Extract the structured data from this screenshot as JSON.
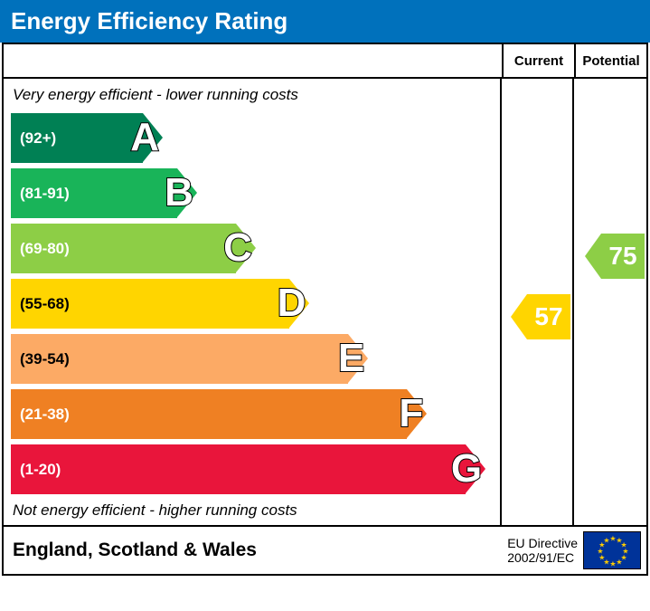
{
  "title": "Energy Efficiency Rating",
  "title_bg": "#0071bc",
  "header": {
    "current": "Current",
    "potential": "Potential"
  },
  "caption_top": "Very energy efficient - lower running costs",
  "caption_bottom": "Not energy efficient - higher running costs",
  "bands": [
    {
      "letter": "A",
      "range": "(92+)",
      "color": "#008054",
      "width_pct": 27,
      "label_color": "#ffffff"
    },
    {
      "letter": "B",
      "range": "(81-91)",
      "color": "#19b459",
      "width_pct": 34,
      "label_color": "#ffffff"
    },
    {
      "letter": "C",
      "range": "(69-80)",
      "color": "#8dce46",
      "width_pct": 46,
      "label_color": "#ffffff"
    },
    {
      "letter": "D",
      "range": "(55-68)",
      "color": "#ffd500",
      "width_pct": 57,
      "label_color": "#000000"
    },
    {
      "letter": "E",
      "range": "(39-54)",
      "color": "#fcaa65",
      "width_pct": 69,
      "label_color": "#000000"
    },
    {
      "letter": "F",
      "range": "(21-38)",
      "color": "#ef8023",
      "width_pct": 81,
      "label_color": "#ffffff"
    },
    {
      "letter": "G",
      "range": "(1-20)",
      "color": "#e9153b",
      "width_pct": 93,
      "label_color": "#ffffff"
    }
  ],
  "band_height": 55,
  "band_gap": 12,
  "top_pad": 34,
  "current": {
    "value": "57",
    "band_index": 3,
    "color": "#ffd500",
    "text_color": "#ffffff"
  },
  "potential": {
    "value": "75",
    "band_index": 2,
    "color": "#8dce46",
    "text_color": "#ffffff"
  },
  "footer": {
    "region": "England, Scotland & Wales",
    "directive_line1": "EU Directive",
    "directive_line2": "2002/91/EC"
  },
  "eu_flag": {
    "bg": "#003399",
    "star_color": "#ffcc00"
  }
}
